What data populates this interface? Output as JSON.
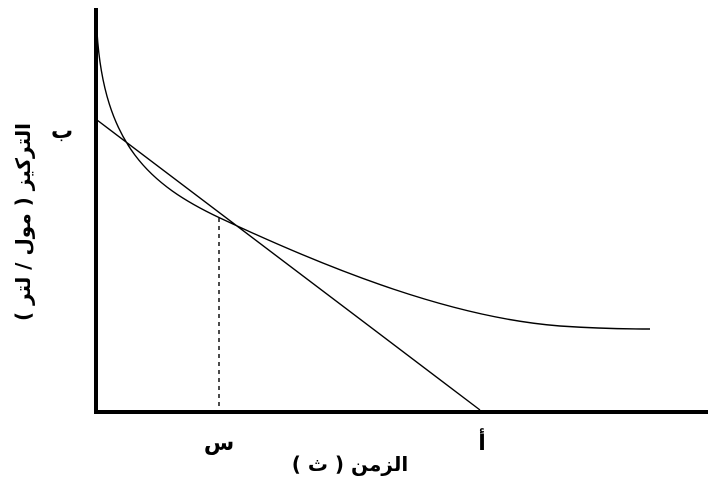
{
  "chart_data": {
    "type": "line",
    "title": "",
    "xlabel": "الزمن ( ث )",
    "ylabel": "التركيز ( مول / لتر )",
    "points": {
      "x_tick_s": "س",
      "x_intercept_a": "أ",
      "y_intercept_b": "ب"
    },
    "series": [
      {
        "name": "",
        "kind": "concentration-curve"
      },
      {
        "name": "",
        "kind": "tangent-line"
      }
    ],
    "grid": false,
    "legend": "none",
    "colors": {
      "axis": "#000000",
      "curve": "#000000",
      "tangent": "#000000"
    }
  }
}
